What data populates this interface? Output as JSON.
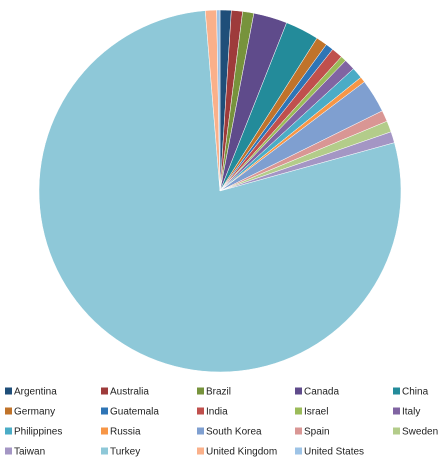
{
  "chart_data": {
    "type": "pie",
    "categories": [
      "Argentina",
      "Australia",
      "Brazil",
      "Canada",
      "China",
      "Germany",
      "Guatemala",
      "India",
      "Israel",
      "Italy",
      "Philippines",
      "Russia",
      "South Korea",
      "Spain",
      "Sweden",
      "Taiwan",
      "Turkey",
      "United Kingdom",
      "United States"
    ],
    "values": [
      1,
      1,
      1,
      3,
      3,
      1,
      0.7,
      1,
      0.5,
      1,
      1,
      0.5,
      3,
      1,
      1,
      1,
      78,
      1,
      0.3
    ],
    "colors": [
      "#1f4e79",
      "#9e3b3b",
      "#77933c",
      "#5f4b8b",
      "#238b9a",
      "#c0732a",
      "#2e75b6",
      "#c0504d",
      "#9bbb59",
      "#8064a2",
      "#4bacc6",
      "#f79646",
      "#7f9fd0",
      "#d99694",
      "#b3cc8a",
      "#a496c4",
      "#8ec8d8",
      "#fab08a",
      "#9dc3e6"
    ],
    "legend": "bottom"
  }
}
